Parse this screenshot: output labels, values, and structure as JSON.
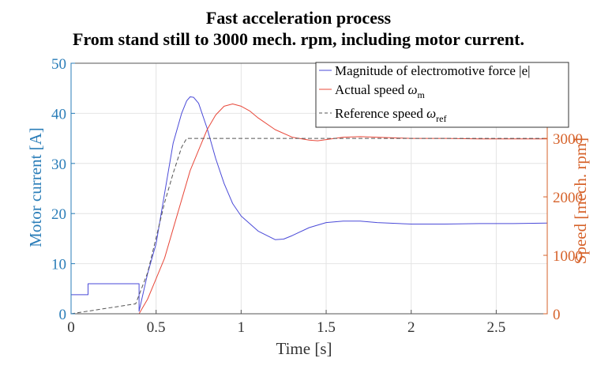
{
  "chart_data": {
    "type": "line",
    "title": "Fast acceleration process",
    "subtitle": "From stand still to 3000 mech. rpm, including motor current.",
    "xlabel": "Time [s]",
    "ylabel_left": "Motor current [A]",
    "ylabel_right": "Speed [mech. rpm]",
    "xlim": [
      0,
      2.8
    ],
    "ylim_left": [
      0,
      50
    ],
    "ylim_right": [
      0,
      4285.7
    ],
    "x_ticks": [
      0,
      0.5,
      1,
      1.5,
      2,
      2.5
    ],
    "x_tick_labels": [
      "0",
      "0.5",
      "1",
      "1.5",
      "2",
      "2.5"
    ],
    "y_left_ticks": [
      0,
      10,
      20,
      30,
      40,
      50
    ],
    "y_left_tick_labels": [
      "0",
      "10",
      "20",
      "30",
      "40",
      "50"
    ],
    "y_right_ticks": [
      0,
      1000,
      2000,
      3000
    ],
    "y_right_tick_labels": [
      "0",
      "1000",
      "2000",
      "3000"
    ],
    "grid": true,
    "legend_position": "top-right",
    "series": [
      {
        "name": "Magnitude of electromotive force |e|",
        "axis": "left",
        "color": "#4a4ad8",
        "style": "solid",
        "x": [
          0,
          0.1,
          0.1,
          0.4,
          0.4,
          0.45,
          0.5,
          0.55,
          0.6,
          0.65,
          0.68,
          0.7,
          0.72,
          0.75,
          0.8,
          0.85,
          0.9,
          0.95,
          1.0,
          1.1,
          1.2,
          1.25,
          1.3,
          1.4,
          1.5,
          1.6,
          1.7,
          1.8,
          2.0,
          2.2,
          2.4,
          2.6,
          2.8
        ],
        "y": [
          3.8,
          3.8,
          6,
          6,
          0.5,
          8,
          14,
          24,
          34,
          40,
          42.5,
          43.3,
          43.2,
          42,
          37,
          31,
          26,
          22,
          19.5,
          16.5,
          14.8,
          14.9,
          15.6,
          17.2,
          18.2,
          18.5,
          18.5,
          18.2,
          17.9,
          17.9,
          18.0,
          18.0,
          18.1
        ]
      },
      {
        "name": "Actual speed ω_m",
        "axis": "right",
        "color": "#e8483a",
        "style": "solid",
        "x": [
          0,
          0.4,
          0.45,
          0.5,
          0.55,
          0.6,
          0.65,
          0.7,
          0.75,
          0.8,
          0.85,
          0.9,
          0.95,
          1.0,
          1.05,
          1.1,
          1.2,
          1.3,
          1.4,
          1.45,
          1.5,
          1.6,
          1.7,
          1.8,
          2.0,
          2.2,
          2.4,
          2.6,
          2.8
        ],
        "y": [
          0,
          0,
          250,
          600,
          950,
          1450,
          1950,
          2450,
          2800,
          3150,
          3400,
          3550,
          3590,
          3550,
          3470,
          3350,
          3150,
          3020,
          2970,
          2960,
          2980,
          3020,
          3030,
          3020,
          3000,
          3000,
          2990,
          2990,
          2990
        ]
      },
      {
        "name": "Reference speed ω_ref",
        "axis": "right",
        "color": "#555555",
        "style": "dashed",
        "x": [
          0,
          0.38,
          0.45,
          0.5,
          0.55,
          0.6,
          0.65,
          0.68,
          2.8
        ],
        "y": [
          0,
          170,
          700,
          1300,
          1900,
          2400,
          2850,
          3000,
          3000
        ]
      }
    ]
  }
}
